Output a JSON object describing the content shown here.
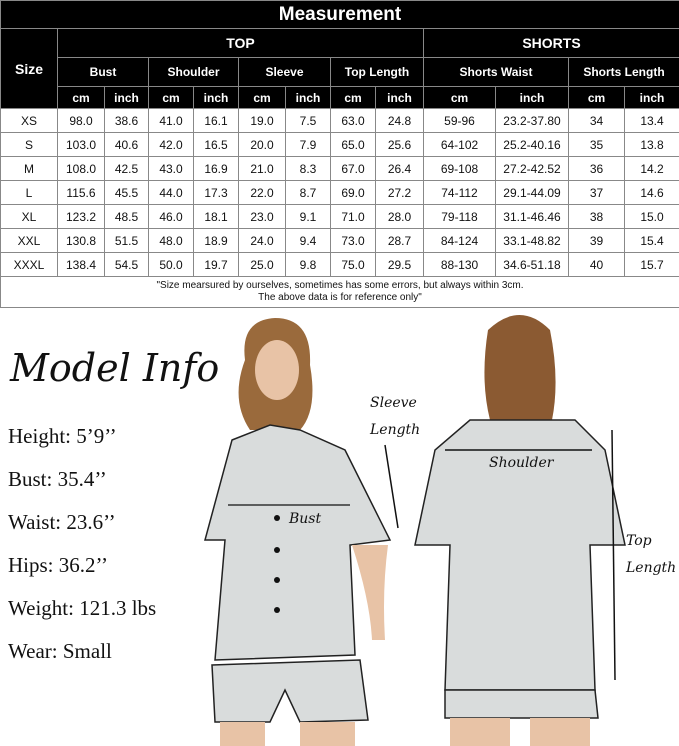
{
  "table": {
    "title": "Measurement",
    "size_label": "Size",
    "groups": [
      "TOP",
      "SHORTS"
    ],
    "measures": [
      "Bust",
      "Shoulder",
      "Sleeve",
      "Top Length",
      "Shorts Waist",
      "Shorts Length"
    ],
    "units": [
      "cm",
      "inch",
      "cm",
      "inch",
      "cm",
      "inch",
      "cm",
      "inch",
      "cm",
      "inch",
      "cm",
      "inch"
    ],
    "rows": [
      [
        "XS",
        "98.0",
        "38.6",
        "41.0",
        "16.1",
        "19.0",
        "7.5",
        "63.0",
        "24.8",
        "59-96",
        "23.2-37.80",
        "34",
        "13.4"
      ],
      [
        "S",
        "103.0",
        "40.6",
        "42.0",
        "16.5",
        "20.0",
        "7.9",
        "65.0",
        "25.6",
        "64-102",
        "25.2-40.16",
        "35",
        "13.8"
      ],
      [
        "M",
        "108.0",
        "42.5",
        "43.0",
        "16.9",
        "21.0",
        "8.3",
        "67.0",
        "26.4",
        "69-108",
        "27.2-42.52",
        "36",
        "14.2"
      ],
      [
        "L",
        "115.6",
        "45.5",
        "44.0",
        "17.3",
        "22.0",
        "8.7",
        "69.0",
        "27.2",
        "74-112",
        "29.1-44.09",
        "37",
        "14.6"
      ],
      [
        "XL",
        "123.2",
        "48.5",
        "46.0",
        "18.1",
        "23.0",
        "9.1",
        "71.0",
        "28.0",
        "79-118",
        "31.1-46.46",
        "38",
        "15.0"
      ],
      [
        "XXL",
        "130.8",
        "51.5",
        "48.0",
        "18.9",
        "24.0",
        "9.4",
        "73.0",
        "28.7",
        "84-124",
        "33.1-48.82",
        "39",
        "15.4"
      ],
      [
        "XXXL",
        "138.4",
        "54.5",
        "50.0",
        "19.7",
        "25.0",
        "9.8",
        "75.0",
        "29.5",
        "88-130",
        "34.6-51.18",
        "40",
        "15.7"
      ]
    ],
    "note_line1": "\"Size mearsured by ourselves, sometimes has some errors, but always within 3cm.",
    "note_line2": "The above data is for reference only\""
  },
  "model_info": {
    "title": "Model Info",
    "items": [
      "Height: 5’9’’",
      "Bust: 35.4’’",
      "Waist: 23.6’’",
      "Hips: 36.2’’",
      "Weight: 121.3 lbs",
      "Wear: Small"
    ]
  },
  "annotations": {
    "sleeve": "Sleeve",
    "length": "Length",
    "bust": "Bust",
    "shoulder": "Shoulder",
    "top": "Top",
    "top_length": "Length"
  },
  "colors": {
    "header_bg": "#000000",
    "pajama": "#d9dcdc",
    "piping": "#111111"
  }
}
